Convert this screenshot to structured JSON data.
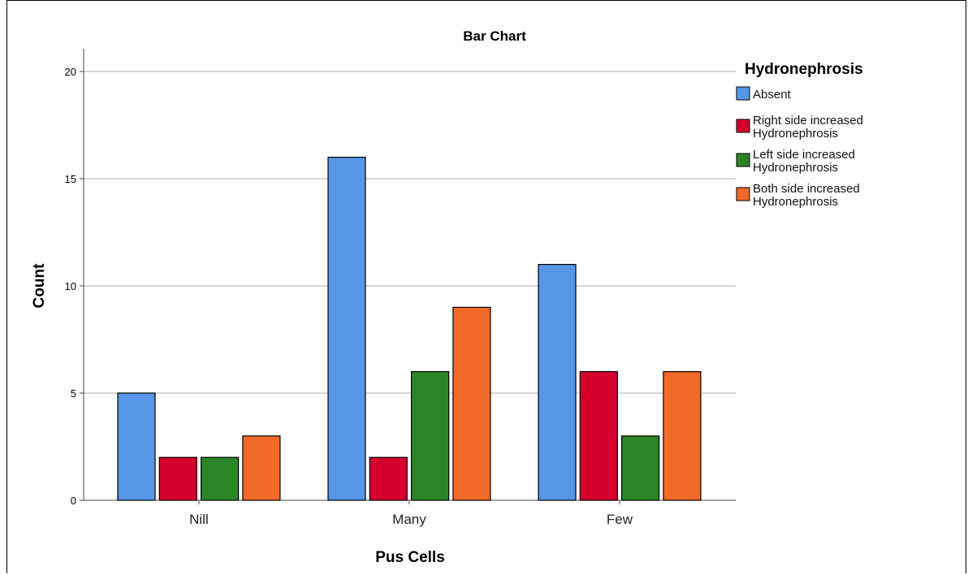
{
  "chart_data": {
    "type": "bar",
    "title": "Bar Chart",
    "xlabel": "Pus Cells",
    "ylabel": "Count",
    "categories": [
      "Nill",
      "Many",
      "Few"
    ],
    "ylim": [
      0,
      21
    ],
    "yticks": [
      0,
      5,
      10,
      15,
      20
    ],
    "grid": true,
    "legend_title": "Hydronephrosis",
    "legend_position": "right",
    "series": [
      {
        "name": "Absent",
        "legend_lines": [
          "Absent"
        ],
        "color": "#5596e6",
        "values": [
          5,
          16,
          11
        ]
      },
      {
        "name": "Right side increased Hydronephrosis",
        "legend_lines": [
          "Right side increased",
          "Hydronephrosis"
        ],
        "color": "#d5002e",
        "values": [
          2,
          2,
          6
        ]
      },
      {
        "name": "Left side increased Hydronephrosis",
        "legend_lines": [
          "Left side increased",
          "Hydronephrosis"
        ],
        "color": "#2b8527",
        "values": [
          2,
          6,
          3
        ]
      },
      {
        "name": "Both side increased Hydronephrosis",
        "legend_lines": [
          "Both side increased",
          "Hydronephrosis"
        ],
        "color": "#f26a2a",
        "values": [
          3,
          9,
          6
        ]
      }
    ]
  }
}
